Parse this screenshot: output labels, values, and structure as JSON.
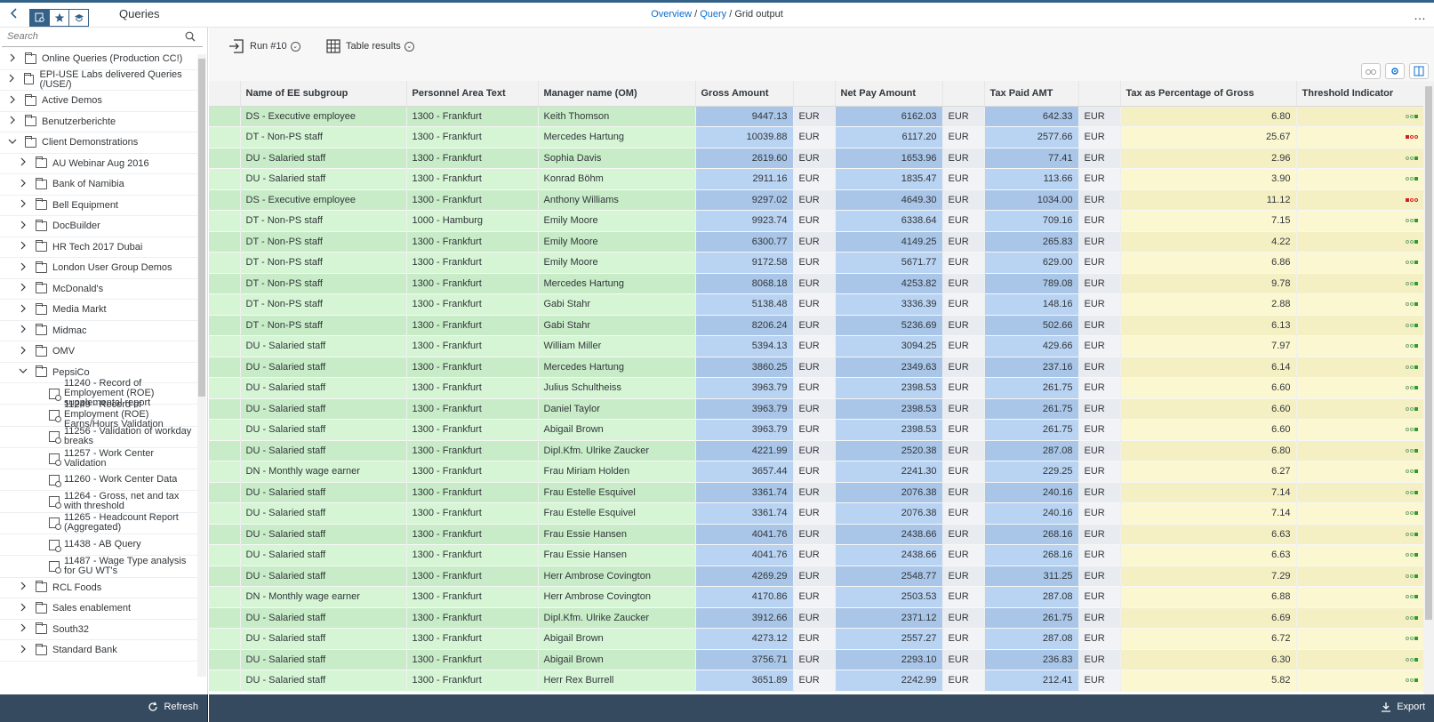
{
  "header": {
    "title": "Queries",
    "breadcrumb": [
      "Overview",
      "Query",
      "Grid output"
    ],
    "overflow": "…"
  },
  "sidebar": {
    "search_placeholder": "Search",
    "items": [
      {
        "label": "Online Queries (Production CC!)",
        "type": "folder",
        "level": 0,
        "expanded": false
      },
      {
        "label": "EPI-USE Labs delivered Queries (/USE/)",
        "type": "folder",
        "level": 0,
        "expanded": false
      },
      {
        "label": "Active Demos",
        "type": "folder",
        "level": 0,
        "expanded": false
      },
      {
        "label": "Benutzerberichte",
        "type": "folder",
        "level": 0,
        "expanded": false
      },
      {
        "label": "Client Demonstrations",
        "type": "folder",
        "level": 0,
        "expanded": true
      },
      {
        "label": "AU Webinar Aug 2016",
        "type": "folder",
        "level": 1,
        "expanded": false
      },
      {
        "label": "Bank of Namibia",
        "type": "folder",
        "level": 1,
        "expanded": false
      },
      {
        "label": "Bell Equipment",
        "type": "folder",
        "level": 1,
        "expanded": false
      },
      {
        "label": "DocBuilder",
        "type": "folder",
        "level": 1,
        "expanded": false
      },
      {
        "label": "HR Tech 2017 Dubai",
        "type": "folder",
        "level": 1,
        "expanded": false
      },
      {
        "label": "London User Group Demos",
        "type": "folder",
        "level": 1,
        "expanded": false
      },
      {
        "label": "McDonald's",
        "type": "folder",
        "level": 1,
        "expanded": false
      },
      {
        "label": "Media Markt",
        "type": "folder",
        "level": 1,
        "expanded": false
      },
      {
        "label": "Midmac",
        "type": "folder",
        "level": 1,
        "expanded": false
      },
      {
        "label": "OMV",
        "type": "folder",
        "level": 1,
        "expanded": false
      },
      {
        "label": "PepsiCo",
        "type": "folder",
        "level": 1,
        "expanded": true
      },
      {
        "label": "11240 - Record of Employement (ROE) supplemental report",
        "type": "query",
        "level": 2
      },
      {
        "label": "11249 - Record of Employment (ROE) Earns/Hours Validation",
        "type": "query",
        "level": 2
      },
      {
        "label": "11256 - Validation of workday breaks",
        "type": "query",
        "level": 2
      },
      {
        "label": "11257 - Work Center Validation",
        "type": "query",
        "level": 2
      },
      {
        "label": "11260 - Work Center Data",
        "type": "query",
        "level": 2
      },
      {
        "label": "11264 - Gross, net and tax with threshold",
        "type": "query",
        "level": 2
      },
      {
        "label": "11265 - Headcount Report (Aggregated)",
        "type": "query",
        "level": 2
      },
      {
        "label": "11438 - AB Query",
        "type": "query",
        "level": 2
      },
      {
        "label": "11487 - Wage Type analysis for GU WT's",
        "type": "query",
        "level": 2
      },
      {
        "label": "RCL Foods",
        "type": "folder",
        "level": 1,
        "expanded": false
      },
      {
        "label": "Sales enablement",
        "type": "folder",
        "level": 1,
        "expanded": false
      },
      {
        "label": "South32",
        "type": "folder",
        "level": 1,
        "expanded": false
      },
      {
        "label": "Standard Bank",
        "type": "folder",
        "level": 1,
        "expanded": false
      }
    ],
    "refresh_label": "Refresh"
  },
  "toolbar": {
    "run_label": "Run #10",
    "results_label": "Table results"
  },
  "grid": {
    "columns": [
      "",
      "Name of EE subgroup",
      "Personnel Area Text",
      "Manager name (OM)",
      "Gross Amount",
      "",
      "Net Pay Amount",
      "",
      "Tax Paid AMT",
      "",
      "Tax as Percentage of Gross",
      "Threshold Indicator"
    ],
    "rows": [
      [
        "DS - Executive employee",
        "1300 - Frankfurt",
        "Keith Thomson",
        "9447.13",
        "EUR",
        "6162.03",
        "EUR",
        "642.33",
        "EUR",
        "6.80",
        "ok"
      ],
      [
        "DT - Non-PS staff",
        "1300 - Frankfurt",
        "Mercedes Hartung",
        "10039.88",
        "EUR",
        "6117.20",
        "EUR",
        "2577.66",
        "EUR",
        "25.67",
        "alert"
      ],
      [
        "DU - Salaried staff",
        "1300 - Frankfurt",
        "Sophia Davis",
        "2619.60",
        "EUR",
        "1653.96",
        "EUR",
        "77.41",
        "EUR",
        "2.96",
        "ok"
      ],
      [
        "DU - Salaried staff",
        "1300 - Frankfurt",
        "Konrad Böhm",
        "2911.16",
        "EUR",
        "1835.47",
        "EUR",
        "113.66",
        "EUR",
        "3.90",
        "ok"
      ],
      [
        "DS - Executive employee",
        "1300 - Frankfurt",
        "Anthony Williams",
        "9297.02",
        "EUR",
        "4649.30",
        "EUR",
        "1034.00",
        "EUR",
        "11.12",
        "alert"
      ],
      [
        "DT - Non-PS staff",
        "1000 - Hamburg",
        "Emily Moore",
        "9923.74",
        "EUR",
        "6338.64",
        "EUR",
        "709.16",
        "EUR",
        "7.15",
        "ok"
      ],
      [
        "DT - Non-PS staff",
        "1300 - Frankfurt",
        "Emily Moore",
        "6300.77",
        "EUR",
        "4149.25",
        "EUR",
        "265.83",
        "EUR",
        "4.22",
        "ok"
      ],
      [
        "DT - Non-PS staff",
        "1300 - Frankfurt",
        "Emily Moore",
        "9172.58",
        "EUR",
        "5671.77",
        "EUR",
        "629.00",
        "EUR",
        "6.86",
        "ok"
      ],
      [
        "DT - Non-PS staff",
        "1300 - Frankfurt",
        "Mercedes Hartung",
        "8068.18",
        "EUR",
        "4253.82",
        "EUR",
        "789.08",
        "EUR",
        "9.78",
        "ok"
      ],
      [
        "DT - Non-PS staff",
        "1300 - Frankfurt",
        "Gabi Stahr",
        "5138.48",
        "EUR",
        "3336.39",
        "EUR",
        "148.16",
        "EUR",
        "2.88",
        "ok"
      ],
      [
        "DT - Non-PS staff",
        "1300 - Frankfurt",
        "Gabi Stahr",
        "8206.24",
        "EUR",
        "5236.69",
        "EUR",
        "502.66",
        "EUR",
        "6.13",
        "ok"
      ],
      [
        "DU - Salaried staff",
        "1300 - Frankfurt",
        "William Miller",
        "5394.13",
        "EUR",
        "3094.25",
        "EUR",
        "429.66",
        "EUR",
        "7.97",
        "ok"
      ],
      [
        "DU - Salaried staff",
        "1300 - Frankfurt",
        "Mercedes Hartung",
        "3860.25",
        "EUR",
        "2349.63",
        "EUR",
        "237.16",
        "EUR",
        "6.14",
        "ok"
      ],
      [
        "DU - Salaried staff",
        "1300 - Frankfurt",
        "Julius Schultheiss",
        "3963.79",
        "EUR",
        "2398.53",
        "EUR",
        "261.75",
        "EUR",
        "6.60",
        "ok"
      ],
      [
        "DU - Salaried staff",
        "1300 - Frankfurt",
        "Daniel Taylor",
        "3963.79",
        "EUR",
        "2398.53",
        "EUR",
        "261.75",
        "EUR",
        "6.60",
        "ok"
      ],
      [
        "DU - Salaried staff",
        "1300 - Frankfurt",
        "Abigail Brown",
        "3963.79",
        "EUR",
        "2398.53",
        "EUR",
        "261.75",
        "EUR",
        "6.60",
        "ok"
      ],
      [
        "DU - Salaried staff",
        "1300 - Frankfurt",
        "Dipl.Kfm. Ulrike Zaucker",
        "4221.99",
        "EUR",
        "2520.38",
        "EUR",
        "287.08",
        "EUR",
        "6.80",
        "ok"
      ],
      [
        "DN - Monthly wage earner",
        "1300 - Frankfurt",
        "Frau Miriam Holden",
        "3657.44",
        "EUR",
        "2241.30",
        "EUR",
        "229.25",
        "EUR",
        "6.27",
        "ok"
      ],
      [
        "DU - Salaried staff",
        "1300 - Frankfurt",
        "Frau Estelle Esquivel",
        "3361.74",
        "EUR",
        "2076.38",
        "EUR",
        "240.16",
        "EUR",
        "7.14",
        "ok"
      ],
      [
        "DU - Salaried staff",
        "1300 - Frankfurt",
        "Frau Estelle Esquivel",
        "3361.74",
        "EUR",
        "2076.38",
        "EUR",
        "240.16",
        "EUR",
        "7.14",
        "ok"
      ],
      [
        "DU - Salaried staff",
        "1300 - Frankfurt",
        "Frau Essie Hansen",
        "4041.76",
        "EUR",
        "2438.66",
        "EUR",
        "268.16",
        "EUR",
        "6.63",
        "ok"
      ],
      [
        "DU - Salaried staff",
        "1300 - Frankfurt",
        "Frau Essie Hansen",
        "4041.76",
        "EUR",
        "2438.66",
        "EUR",
        "268.16",
        "EUR",
        "6.63",
        "ok"
      ],
      [
        "DU - Salaried staff",
        "1300 - Frankfurt",
        "Herr Ambrose Covington",
        "4269.29",
        "EUR",
        "2548.77",
        "EUR",
        "311.25",
        "EUR",
        "7.29",
        "ok"
      ],
      [
        "DN - Monthly wage earner",
        "1300 - Frankfurt",
        "Herr Ambrose Covington",
        "4170.86",
        "EUR",
        "2503.53",
        "EUR",
        "287.08",
        "EUR",
        "6.88",
        "ok"
      ],
      [
        "DU - Salaried staff",
        "1300 - Frankfurt",
        "Dipl.Kfm. Ulrike Zaucker",
        "3912.66",
        "EUR",
        "2371.12",
        "EUR",
        "261.75",
        "EUR",
        "6.69",
        "ok"
      ],
      [
        "DU - Salaried staff",
        "1300 - Frankfurt",
        "Abigail Brown",
        "4273.12",
        "EUR",
        "2557.27",
        "EUR",
        "287.08",
        "EUR",
        "6.72",
        "ok"
      ],
      [
        "DU - Salaried staff",
        "1300 - Frankfurt",
        "Abigail Brown",
        "3756.71",
        "EUR",
        "2293.10",
        "EUR",
        "236.83",
        "EUR",
        "6.30",
        "ok"
      ],
      [
        "DU - Salaried staff",
        "1300 - Frankfurt",
        "Herr Rex Burrell",
        "3651.89",
        "EUR",
        "2242.99",
        "EUR",
        "212.41",
        "EUR",
        "5.82",
        "ok"
      ]
    ]
  },
  "footer": {
    "export_label": "Export"
  },
  "colors": {
    "accent": "#346187",
    "link": "#0a6ed1",
    "footer_bg": "#354a5f",
    "green_cell": "#c8ecc8",
    "blue_cell": "#a9c6e8",
    "yellow_cell": "#f5f0c4"
  }
}
